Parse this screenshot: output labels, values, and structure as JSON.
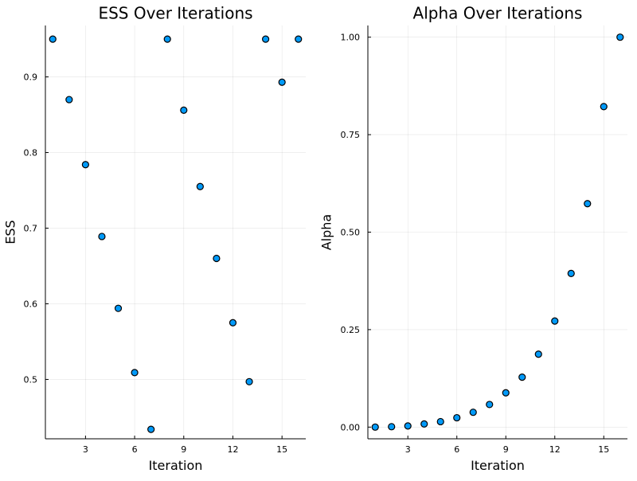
{
  "chart_data": [
    {
      "type": "scatter",
      "title": "ESS Over Iterations",
      "xlabel": "Iteration",
      "ylabel": "ESS",
      "xlim": [
        0.55,
        16.45
      ],
      "ylim": [
        0.4215,
        0.968
      ],
      "xticks": [
        3,
        6,
        9,
        12,
        15
      ],
      "yticks": [
        0.5,
        0.6,
        0.7,
        0.8,
        0.9
      ],
      "grid": true,
      "legend": "none",
      "marker_color": "#009af9",
      "x": [
        1,
        2,
        3,
        4,
        5,
        6,
        7,
        8,
        9,
        10,
        11,
        12,
        13,
        14,
        15,
        16
      ],
      "y": [
        0.95,
        0.87,
        0.784,
        0.689,
        0.594,
        0.509,
        0.434,
        0.95,
        0.856,
        0.755,
        0.66,
        0.575,
        0.497,
        0.95,
        0.893,
        0.95
      ]
    },
    {
      "type": "scatter",
      "title": "Alpha Over Iterations",
      "xlabel": "Iteration",
      "ylabel": "Alpha",
      "xlim": [
        0.55,
        16.45
      ],
      "ylim": [
        -0.03,
        1.03
      ],
      "xticks": [
        3,
        6,
        9,
        12,
        15
      ],
      "yticks": [
        0.0,
        0.25,
        0.5,
        0.75,
        1.0
      ],
      "ytick_labels": [
        "0.00",
        "0.25",
        "0.50",
        "0.75",
        "1.00"
      ],
      "grid": true,
      "legend": "none",
      "marker_color": "#009af9",
      "x": [
        1,
        2,
        3,
        4,
        5,
        6,
        7,
        8,
        9,
        10,
        11,
        12,
        13,
        14,
        15,
        16
      ],
      "y": [
        0.0,
        0.001,
        0.003,
        0.008,
        0.014,
        0.024,
        0.038,
        0.058,
        0.088,
        0.128,
        0.187,
        0.272,
        0.394,
        0.573,
        0.822,
        1.0
      ]
    }
  ]
}
